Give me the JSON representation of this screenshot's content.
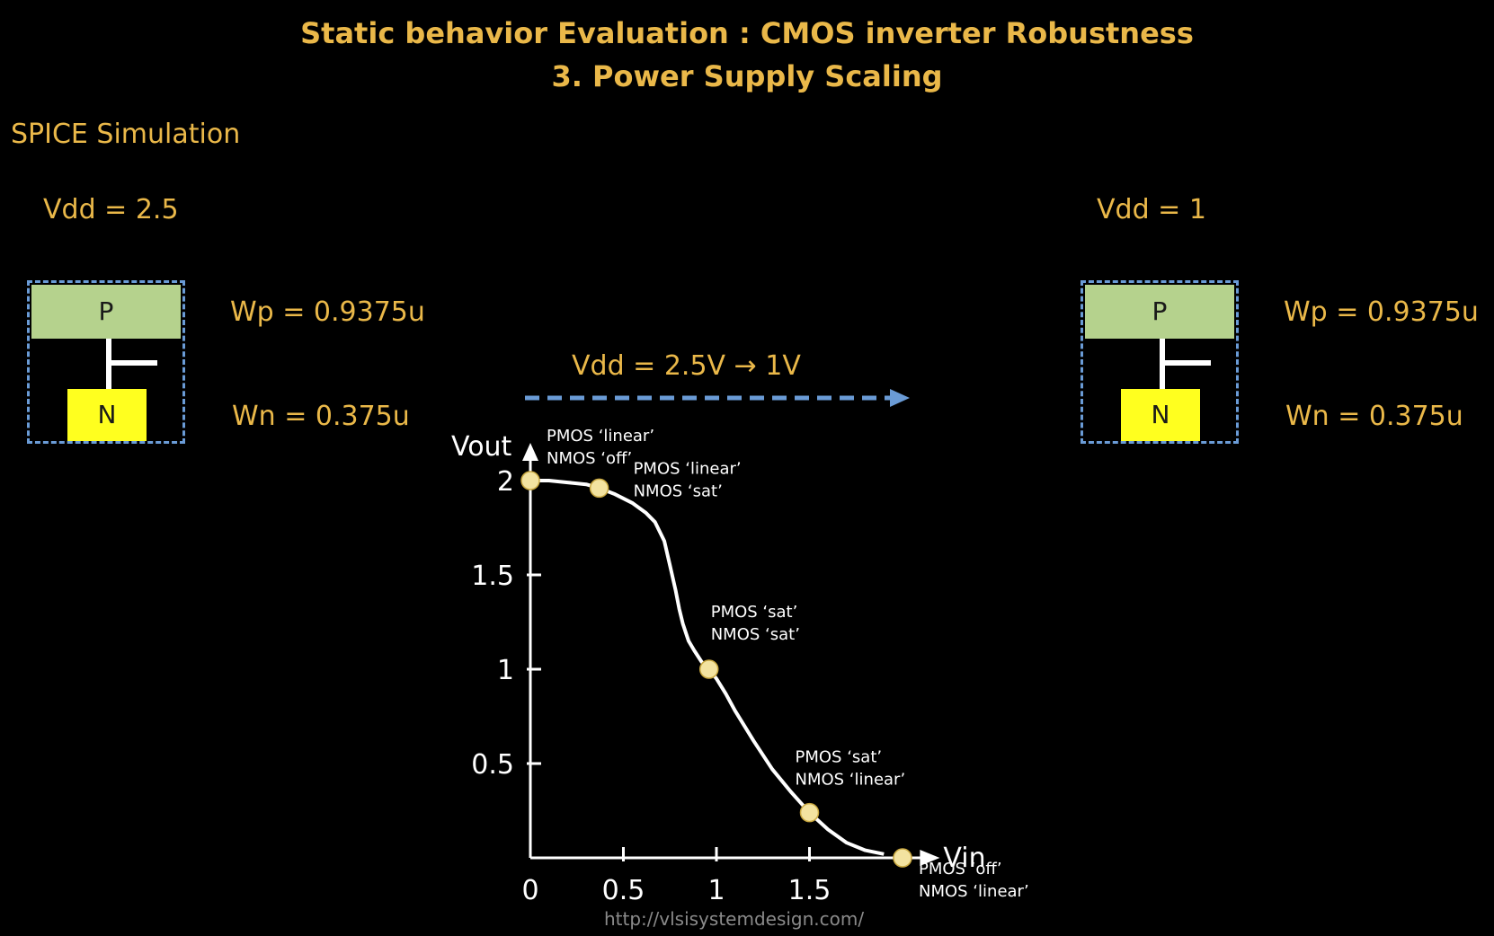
{
  "header": {
    "title_line1": "Static behavior Evaluation : CMOS inverter Robustness",
    "title_line2": "3. Power Supply Scaling",
    "section": "SPICE Simulation"
  },
  "left_inverter": {
    "vdd_label": "Vdd = 2.5",
    "p_label": "P",
    "n_label": "N",
    "wp": "Wp = 0.9375u",
    "wn": "Wn = 0.375u"
  },
  "right_inverter": {
    "vdd_label": "Vdd = 1",
    "p_label": "P",
    "n_label": "N",
    "wp": "Wp = 0.9375u",
    "wn": "Wn = 0.375u"
  },
  "transition": {
    "label": "Vdd = 2.5V → 1V"
  },
  "colors": {
    "accent": "#eab849",
    "p_block": "#b5d28d",
    "n_block": "#ffff1f",
    "dashed_border": "#6a9bd6",
    "curve": "#ffffff",
    "marker": "#f3e3a0"
  },
  "chart_data": {
    "type": "line",
    "xlabel": "Vin",
    "ylabel": "Vout",
    "xlim": [
      0,
      2.1
    ],
    "ylim": [
      0,
      2.1
    ],
    "x_ticks": [
      0,
      0.5,
      1,
      1.5
    ],
    "x_tick_labels": [
      "0",
      "0.5",
      "1",
      "1.5"
    ],
    "y_ticks": [
      0.5,
      1,
      1.5,
      2
    ],
    "y_tick_labels": [
      "0.5",
      "1",
      "1.5",
      "2"
    ],
    "curve": {
      "x": [
        0,
        0.1,
        0.2,
        0.3,
        0.37,
        0.45,
        0.55,
        0.62,
        0.67,
        0.72,
        0.75,
        0.78,
        0.8,
        0.82,
        0.85,
        0.88,
        0.92,
        0.96,
        1.0,
        1.05,
        1.1,
        1.2,
        1.3,
        1.4,
        1.5,
        1.6,
        1.7,
        1.8,
        1.9
      ],
      "y": [
        2.0,
        2.0,
        1.99,
        1.98,
        1.96,
        1.93,
        1.88,
        1.83,
        1.78,
        1.68,
        1.55,
        1.42,
        1.32,
        1.24,
        1.15,
        1.1,
        1.04,
        1.0,
        0.95,
        0.87,
        0.78,
        0.62,
        0.47,
        0.35,
        0.24,
        0.15,
        0.08,
        0.04,
        0.02
      ]
    },
    "points": [
      {
        "x": 0,
        "y": 2.0,
        "label1": "PMOS ‘linear’",
        "label2": "NMOS ‘off’"
      },
      {
        "x": 0.37,
        "y": 1.96,
        "label1": "PMOS ‘linear’",
        "label2": "NMOS ‘sat’"
      },
      {
        "x": 0.96,
        "y": 1.0,
        "label1": "PMOS ‘sat’",
        "label2": "NMOS ‘sat’"
      },
      {
        "x": 1.5,
        "y": 0.24,
        "label1": "PMOS ‘sat’",
        "label2": "NMOS ‘linear’"
      },
      {
        "x": 2.0,
        "y": 0.0,
        "label1": "PMOS ‘off’",
        "label2": "NMOS ‘linear’"
      }
    ]
  },
  "footer": {
    "url": "http://vlsisystemdesign.com/"
  }
}
